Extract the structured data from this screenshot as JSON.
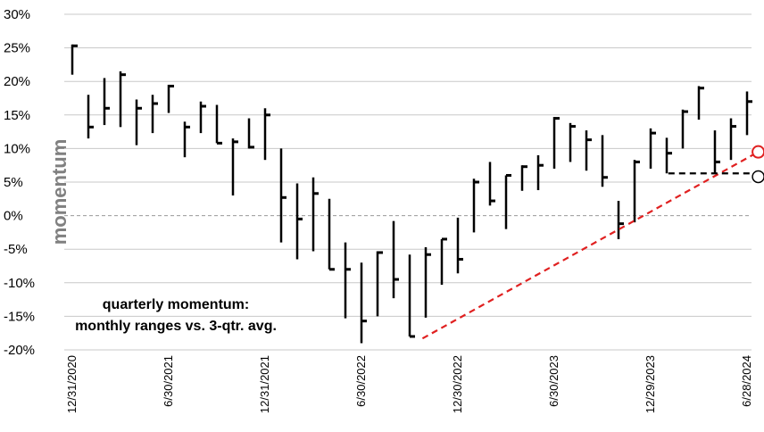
{
  "chart_data": {
    "type": "range",
    "y_label": "momentum",
    "annotation": [
      "quarterly momentum:",
      "monthly ranges vs. 3-qtr. avg."
    ],
    "categories": [
      "12/31/2020",
      null,
      null,
      null,
      null,
      null,
      "6/30/2021",
      null,
      null,
      null,
      null,
      null,
      "12/31/2021",
      null,
      null,
      null,
      null,
      null,
      "6/30/2022",
      null,
      null,
      null,
      null,
      null,
      "12/30/2022",
      null,
      null,
      null,
      null,
      null,
      "6/30/2023",
      null,
      null,
      null,
      null,
      null,
      "12/29/2023",
      null,
      null,
      null,
      null,
      null,
      "6/28/2024"
    ],
    "high": [
      25.5,
      18,
      20.5,
      21.5,
      17.3,
      18,
      19.5,
      14,
      17,
      16.5,
      11.5,
      14.5,
      16,
      10,
      4.8,
      5.7,
      2.5,
      -4,
      -7,
      -5.3,
      -0.8,
      -5.8,
      -4.7,
      -3.5,
      -0.3,
      5.5,
      8,
      6,
      7.5,
      9,
      14.7,
      13.8,
      12.7,
      12,
      2.2,
      8.3,
      13,
      11.6,
      15.8,
      19.3,
      12.7,
      14.5,
      18.5
    ],
    "low": [
      21,
      11.5,
      13.5,
      13.2,
      10.5,
      12.3,
      15.3,
      8.7,
      12.3,
      10.8,
      3,
      10,
      8.3,
      -4,
      -6.5,
      -5.3,
      -8,
      -15.3,
      -19,
      -15,
      -12.3,
      -18,
      -15.2,
      -10.3,
      -8.6,
      -2.5,
      1.5,
      -2,
      3.7,
      3.8,
      7,
      8,
      6.7,
      4.3,
      -3.5,
      -1,
      7,
      6.3,
      10,
      14.3,
      6.3,
      8.3,
      12
    ],
    "values": [
      25.3,
      13.2,
      16,
      21,
      16,
      16.7,
      19.3,
      13.2,
      16.3,
      10.8,
      11,
      10.2,
      15,
      2.7,
      -0.5,
      3.3,
      -8,
      -8,
      -15.7,
      -5.5,
      -9.5,
      -18,
      -5.8,
      -3.5,
      -6.5,
      5,
      2.2,
      6,
      7.3,
      7.5,
      14.5,
      13.3,
      11.3,
      5.7,
      -1.2,
      8,
      12.3,
      9.3,
      15.5,
      19,
      8,
      13.3,
      17
    ],
    "color": "#000000",
    "trend_line": {
      "x": [
        21.8,
        42.7
      ],
      "values": [
        -18.3,
        9.5
      ],
      "color": "#e02020"
    },
    "avg_line": {
      "x": [
        37.1,
        42.7
      ],
      "values": [
        6.3,
        6.3
      ],
      "color": "#000000"
    },
    "marker_red": {
      "x": 42.7,
      "value": 9.5
    },
    "marker_black": {
      "x": 42.7,
      "value": 5.8
    },
    "ylim": [
      -20,
      30
    ],
    "yticks": [
      {
        "value": -20,
        "label": "-20%"
      },
      {
        "value": -15,
        "label": "-15%"
      },
      {
        "value": -10,
        "label": "-10%"
      },
      {
        "value": -5,
        "label": "-5%"
      },
      {
        "value": 0,
        "label": "0%"
      },
      {
        "value": 5,
        "label": "5%"
      },
      {
        "value": 10,
        "label": "10%"
      },
      {
        "value": 15,
        "label": "15%"
      },
      {
        "value": 20,
        "label": "20%"
      },
      {
        "value": 25,
        "label": "25%"
      },
      {
        "value": 30,
        "label": "30%"
      }
    ],
    "grid": true
  }
}
